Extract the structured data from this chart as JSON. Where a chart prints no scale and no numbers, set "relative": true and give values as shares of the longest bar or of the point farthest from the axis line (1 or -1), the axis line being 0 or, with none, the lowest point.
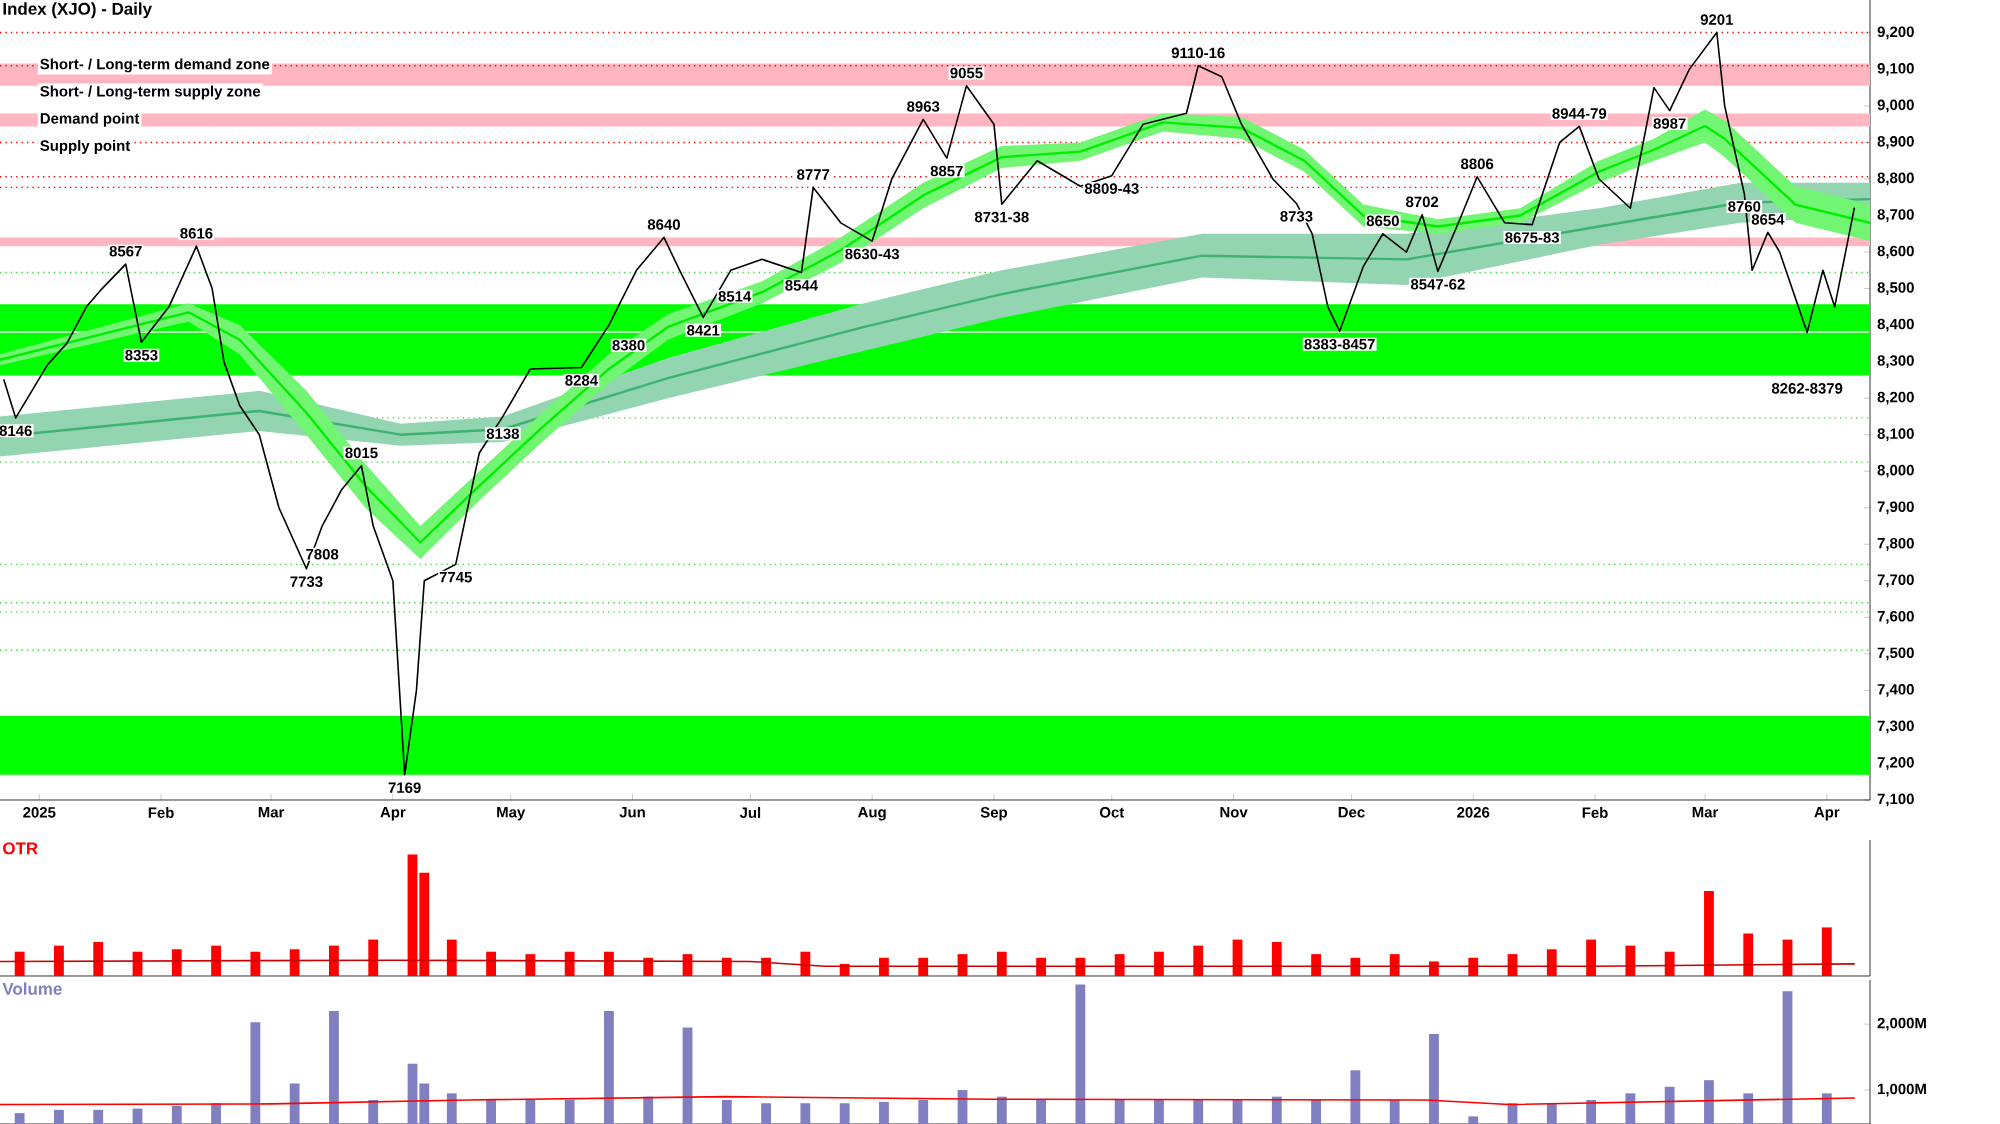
{
  "chart_data": [
    {
      "type": "line",
      "title": "Index (XJO) - Daily",
      "annotations": [
        "Short- / Long-term demand zone",
        "Short- / Long-term supply zone",
        "Demand point",
        "Supply point",
        {
          "text": "8146",
          "x": "2024-12-26",
          "y": 8146
        },
        {
          "text": "8567",
          "x": "2025-01-23",
          "y": 8567
        },
        {
          "text": "8353",
          "x": "2025-01-27",
          "y": 8353
        },
        {
          "text": "8616",
          "x": "2025-02-10",
          "y": 8616
        },
        {
          "text": "7733",
          "x": "2025-03-10",
          "y": 7733
        },
        {
          "text": "7808",
          "x": "2025-03-14",
          "y": 7808
        },
        {
          "text": "8015",
          "x": "2025-03-24",
          "y": 8015
        },
        {
          "text": "7169",
          "x": "2025-04-04",
          "y": 7169
        },
        {
          "text": "7745",
          "x": "2025-04-17",
          "y": 7745
        },
        {
          "text": "8138",
          "x": "2025-04-29",
          "y": 8138
        },
        {
          "text": "8284",
          "x": "2025-05-19",
          "y": 8284
        },
        {
          "text": "8380",
          "x": "2025-05-31",
          "y": 8380
        },
        {
          "text": "8640",
          "x": "2025-06-09",
          "y": 8640
        },
        {
          "text": "8421",
          "x": "2025-06-19",
          "y": 8421
        },
        {
          "text": "8514",
          "x": "2025-06-27",
          "y": 8514
        },
        {
          "text": "8544",
          "x": "2025-07-14",
          "y": 8544
        },
        {
          "text": "8777",
          "x": "2025-07-17",
          "y": 8777
        },
        {
          "text": "8630-43",
          "x": "2025-08-01",
          "y": 8630
        },
        {
          "text": "8963",
          "x": "2025-08-14",
          "y": 8963
        },
        {
          "text": "8857",
          "x": "2025-08-20",
          "y": 8857
        },
        {
          "text": "9055",
          "x": "2025-08-25",
          "y": 9055
        },
        {
          "text": "8731-38",
          "x": "2025-09-03",
          "y": 8731
        },
        {
          "text": "8809-43",
          "x": "2025-10-01",
          "y": 8809
        },
        {
          "text": "9110-16",
          "x": "2025-10-23",
          "y": 9110
        },
        {
          "text": "8733",
          "x": "2025-11-17",
          "y": 8733
        },
        {
          "text": "8383-8457",
          "x": "2025-11-28",
          "y": 8383
        },
        {
          "text": "8650",
          "x": "2025-12-09",
          "y": 8650
        },
        {
          "text": "8702",
          "x": "2025-12-19",
          "y": 8702
        },
        {
          "text": "8547-62",
          "x": "2025-12-23",
          "y": 8547
        },
        {
          "text": "8806",
          "x": "2026-01-02",
          "y": 8806
        },
        {
          "text": "8675-83",
          "x": "2026-01-16",
          "y": 8675
        },
        {
          "text": "8944-79",
          "x": "2026-01-28",
          "y": 8944
        },
        {
          "text": "8987",
          "x": "2026-02-20",
          "y": 8987
        },
        {
          "text": "9201",
          "x": "2026-03-04",
          "y": 9201
        },
        {
          "text": "8760",
          "x": "2026-03-11",
          "y": 8760
        },
        {
          "text": "8654",
          "x": "2026-03-17",
          "y": 8654
        },
        {
          "text": "8262-8379",
          "x": "2026-03-27",
          "y": 8262
        }
      ],
      "xlim": [
        "2024-12-22",
        "2026-04-12"
      ],
      "xticks": [
        {
          "value": "2025-01-01",
          "label": "2025"
        },
        {
          "value": "2025-02-01",
          "label": "Feb"
        },
        {
          "value": "2025-03-01",
          "label": "Mar"
        },
        {
          "value": "2025-04-01",
          "label": "Apr"
        },
        {
          "value": "2025-05-01",
          "label": "May"
        },
        {
          "value": "2025-06-01",
          "label": "Jun"
        },
        {
          "value": "2025-07-01",
          "label": "Jul"
        },
        {
          "value": "2025-08-01",
          "label": "Aug"
        },
        {
          "value": "2025-09-01",
          "label": "Sep"
        },
        {
          "value": "2025-10-01",
          "label": "Oct"
        },
        {
          "value": "2025-11-01",
          "label": "Nov"
        },
        {
          "value": "2025-12-01",
          "label": "Dec"
        },
        {
          "value": "2026-01-01",
          "label": "2026"
        },
        {
          "value": "2026-02-01",
          "label": "Feb"
        },
        {
          "value": "2026-03-01",
          "label": "Mar"
        },
        {
          "value": "2026-04-01",
          "label": "Apr"
        }
      ],
      "ylim": [
        7100,
        9290
      ],
      "yticks": [
        {
          "value": 7100,
          "label": "7,100"
        },
        {
          "value": 7200,
          "label": "7,200"
        },
        {
          "value": 7300,
          "label": "7,300"
        },
        {
          "value": 7400,
          "label": "7,400"
        },
        {
          "value": 7500,
          "label": "7,500"
        },
        {
          "value": 7600,
          "label": "7,600"
        },
        {
          "value": 7700,
          "label": "7,700"
        },
        {
          "value": 7800,
          "label": "7,800"
        },
        {
          "value": 7900,
          "label": "7,900"
        },
        {
          "value": 8000,
          "label": "8,000"
        },
        {
          "value": 8100,
          "label": "8,100"
        },
        {
          "value": 8200,
          "label": "8,200"
        },
        {
          "value": 8300,
          "label": "8,300"
        },
        {
          "value": 8400,
          "label": "8,400"
        },
        {
          "value": 8500,
          "label": "8,500"
        },
        {
          "value": 8600,
          "label": "8,600"
        },
        {
          "value": 8700,
          "label": "8,700"
        },
        {
          "value": 8800,
          "label": "8,800"
        },
        {
          "value": 8900,
          "label": "8,900"
        },
        {
          "value": 9000,
          "label": "9,000"
        },
        {
          "value": 9100,
          "label": "9,100"
        },
        {
          "value": 9200,
          "label": "9,200"
        }
      ],
      "bands": [
        {
          "axis": "y",
          "from": 7169,
          "to": 7330,
          "color": "#00ff00"
        },
        {
          "axis": "y",
          "from": 8383,
          "to": 8457,
          "color": "#00ff00"
        },
        {
          "axis": "y",
          "from": 8262,
          "to": 8379,
          "color": "#00ff00"
        },
        {
          "axis": "y",
          "from": 9055,
          "to": 9116,
          "color": "#ffb6c1"
        },
        {
          "axis": "y",
          "from": 8616,
          "to": 8640,
          "color": "#ffb6c1"
        },
        {
          "axis": "y",
          "from": 8944,
          "to": 8979,
          "color": "#ffb6c1"
        }
      ],
      "ref_lines": [
        {
          "axis": "y",
          "value": 8544,
          "color": "#33dd33",
          "line_style": "dotted"
        },
        {
          "axis": "y",
          "value": 8440,
          "color": "#33dd33",
          "line_style": "dotted"
        },
        {
          "axis": "y",
          "value": 8300,
          "color": "#33dd33",
          "line_style": "dotted"
        },
        {
          "axis": "y",
          "value": 8146,
          "color": "#33dd33",
          "line_style": "dotted"
        },
        {
          "axis": "y",
          "value": 8025,
          "color": "#33dd33",
          "line_style": "dotted"
        },
        {
          "axis": "y",
          "value": 7745,
          "color": "#33dd33",
          "line_style": "dotted"
        },
        {
          "axis": "y",
          "value": 7640,
          "color": "#33dd33",
          "line_style": "dotted"
        },
        {
          "axis": "y",
          "value": 7615,
          "color": "#33dd33",
          "line_style": "dotted"
        },
        {
          "axis": "y",
          "value": 7510,
          "color": "#33dd33",
          "line_style": "dotted"
        },
        {
          "axis": "y",
          "value": 9201,
          "color": "#ff0000",
          "line_style": "dotted"
        },
        {
          "axis": "y",
          "value": 9110,
          "color": "#ff0000",
          "line_style": "dotted"
        },
        {
          "axis": "y",
          "value": 8900,
          "color": "#ff0000",
          "line_style": "dotted"
        },
        {
          "axis": "y",
          "value": 8806,
          "color": "#ff0000",
          "line_style": "dotted"
        },
        {
          "axis": "y",
          "value": 8777,
          "color": "#ff0000",
          "line_style": "dotted"
        }
      ],
      "series": [
        {
          "color": "#000000",
          "x": [
            "2024-12-23",
            "2024-12-26",
            "2025-01-03",
            "2025-01-08",
            "2025-01-13",
            "2025-01-17",
            "2025-01-23",
            "2025-01-27",
            "2025-02-03",
            "2025-02-10",
            "2025-02-14",
            "2025-02-17",
            "2025-02-21",
            "2025-02-26",
            "2025-03-03",
            "2025-03-10",
            "2025-03-14",
            "2025-03-19",
            "2025-03-24",
            "2025-03-27",
            "2025-04-01",
            "2025-04-04",
            "2025-04-07",
            "2025-04-09",
            "2025-04-17",
            "2025-04-23",
            "2025-04-29",
            "2025-05-06",
            "2025-05-19",
            "2025-05-26",
            "2025-06-02",
            "2025-06-09",
            "2025-06-13",
            "2025-06-19",
            "2025-06-26",
            "2025-07-04",
            "2025-07-14",
            "2025-07-17",
            "2025-07-24",
            "2025-08-01",
            "2025-08-06",
            "2025-08-14",
            "2025-08-20",
            "2025-08-25",
            "2025-09-01",
            "2025-09-03",
            "2025-09-12",
            "2025-09-23",
            "2025-10-01",
            "2025-10-09",
            "2025-10-20",
            "2025-10-23",
            "2025-10-29",
            "2025-11-03",
            "2025-11-11",
            "2025-11-17",
            "2025-11-21",
            "2025-11-25",
            "2025-11-28",
            "2025-12-04",
            "2025-12-09",
            "2025-12-15",
            "2025-12-19",
            "2025-12-23",
            "2025-12-29",
            "2026-01-02",
            "2026-01-09",
            "2026-01-16",
            "2026-01-23",
            "2026-01-28",
            "2026-02-02",
            "2026-02-10",
            "2026-02-16",
            "2026-02-20",
            "2026-02-25",
            "2026-03-04",
            "2026-03-06",
            "2026-03-11",
            "2026-03-13",
            "2026-03-17",
            "2026-03-20",
            "2026-03-27",
            "2026-03-31",
            "2026-04-03",
            "2026-04-08"
          ],
          "values": [
            8250,
            8146,
            8290,
            8350,
            8450,
            8500,
            8567,
            8353,
            8450,
            8616,
            8500,
            8300,
            8180,
            8100,
            7900,
            7733,
            7850,
            7950,
            8015,
            7850,
            7700,
            7169,
            7400,
            7700,
            7745,
            8050,
            8150,
            8280,
            8284,
            8400,
            8550,
            8640,
            8550,
            8421,
            8550,
            8580,
            8544,
            8777,
            8680,
            8630,
            8800,
            8963,
            8857,
            9055,
            8950,
            8731,
            8850,
            8780,
            8809,
            8950,
            8980,
            9110,
            9080,
            8950,
            8800,
            8733,
            8650,
            8450,
            8383,
            8560,
            8650,
            8600,
            8702,
            8547,
            8700,
            8806,
            8680,
            8675,
            8900,
            8944,
            8800,
            8720,
            9050,
            8987,
            9100,
            9201,
            9000,
            8760,
            8550,
            8654,
            8600,
            8380,
            8550,
            8450,
            8720
          ]
        },
        {
          "color": "#3cb371",
          "x": [
            "2024-12-22",
            "2025-02-26",
            "2025-04-03",
            "2025-04-29",
            "2025-06-10",
            "2025-07-30",
            "2025-09-03",
            "2025-10-24",
            "2025-12-15",
            "2026-02-02",
            "2026-03-10",
            "2026-04-12"
          ],
          "values": [
            8095,
            8165,
            8100,
            8115,
            8255,
            8395,
            8485,
            8590,
            8580,
            8670,
            8735,
            8745
          ],
          "lower": [
            8040,
            8110,
            8070,
            8080,
            8200,
            8330,
            8420,
            8530,
            8510,
            8620,
            8680,
            8700
          ],
          "upper": [
            8150,
            8220,
            8130,
            8150,
            8310,
            8460,
            8550,
            8650,
            8650,
            8720,
            8790,
            8790
          ]
        },
        {
          "color": "#00ee00",
          "x": [
            "2024-12-22",
            "2025-02-08",
            "2025-02-21",
            "2025-03-10",
            "2025-03-25",
            "2025-04-08",
            "2025-04-23",
            "2025-05-09",
            "2025-05-26",
            "2025-06-10",
            "2025-07-04",
            "2025-07-24",
            "2025-08-14",
            "2025-09-03",
            "2025-09-23",
            "2025-10-14",
            "2025-11-03",
            "2025-11-19",
            "2025-12-04",
            "2025-12-23",
            "2026-01-13",
            "2026-02-02",
            "2026-02-16",
            "2026-03-01",
            "2026-03-06",
            "2026-03-24",
            "2026-04-12"
          ],
          "values": [
            8305,
            8435,
            8360,
            8160,
            7960,
            7805,
            7960,
            8120,
            8280,
            8395,
            8490,
            8605,
            8755,
            8860,
            8875,
            8955,
            8940,
            8850,
            8700,
            8670,
            8700,
            8820,
            8880,
            8945,
            8910,
            8730,
            8680
          ],
          "lower": [
            8290,
            8410,
            8320,
            8100,
            7900,
            7760,
            7920,
            8080,
            8240,
            8360,
            8460,
            8570,
            8720,
            8830,
            8850,
            8930,
            8910,
            8820,
            8670,
            8650,
            8680,
            8790,
            8850,
            8900,
            8860,
            8680,
            8630
          ],
          "upper": [
            8320,
            8460,
            8400,
            8220,
            8020,
            7850,
            8000,
            8160,
            8320,
            8430,
            8520,
            8640,
            8790,
            8890,
            8900,
            8980,
            8970,
            8880,
            8730,
            8690,
            8720,
            8850,
            8910,
            8990,
            8960,
            8780,
            8730
          ]
        }
      ]
    },
    {
      "type": "bar",
      "title": "OTR",
      "relative": true,
      "tick_labels": false,
      "xlim": [
        "2024-12-22",
        "2026-04-12"
      ],
      "series": [
        {
          "color": "#ff0000",
          "x": [
            "2024-12-27",
            "2025-01-06",
            "2025-01-16",
            "2025-01-26",
            "2025-02-05",
            "2025-02-15",
            "2025-02-25",
            "2025-03-07",
            "2025-03-17",
            "2025-03-27",
            "2025-04-06",
            "2025-04-09",
            "2025-04-16",
            "2025-04-26",
            "2025-05-06",
            "2025-05-16",
            "2025-05-26",
            "2025-06-05",
            "2025-06-15",
            "2025-06-25",
            "2025-07-05",
            "2025-07-15",
            "2025-07-25",
            "2025-08-04",
            "2025-08-14",
            "2025-08-24",
            "2025-09-03",
            "2025-09-13",
            "2025-09-23",
            "2025-10-03",
            "2025-10-13",
            "2025-10-23",
            "2025-11-02",
            "2025-11-12",
            "2025-11-22",
            "2025-12-02",
            "2025-12-12",
            "2025-12-22",
            "2026-01-01",
            "2026-01-11",
            "2026-01-21",
            "2026-01-31",
            "2026-02-10",
            "2026-02-20",
            "2026-03-02",
            "2026-03-12",
            "2026-03-22",
            "2026-04-01"
          ],
          "values": [
            0.2,
            0.25,
            0.28,
            0.2,
            0.22,
            0.25,
            0.2,
            0.22,
            0.25,
            0.3,
            1.0,
            0.85,
            0.3,
            0.2,
            0.18,
            0.2,
            0.2,
            0.15,
            0.18,
            0.15,
            0.15,
            0.2,
            0.1,
            0.15,
            0.15,
            0.18,
            0.2,
            0.15,
            0.15,
            0.18,
            0.2,
            0.25,
            0.3,
            0.28,
            0.18,
            0.15,
            0.18,
            0.12,
            0.15,
            0.18,
            0.22,
            0.3,
            0.25,
            0.2,
            0.7,
            0.35,
            0.3,
            0.4
          ]
        },
        {
          "type": "line",
          "color": "#cc0000",
          "x": [
            "2024-12-22",
            "2025-04-01",
            "2025-07-01",
            "2025-07-20",
            "2026-02-01",
            "2026-04-08"
          ],
          "values": [
            0.12,
            0.13,
            0.12,
            0.08,
            0.08,
            0.1
          ]
        }
      ]
    },
    {
      "type": "bar",
      "title": "Volume",
      "tick_labels": "y",
      "xlim": [
        "2024-12-22",
        "2026-04-12"
      ],
      "ylim": [
        485,
        2670
      ],
      "yticks": [
        {
          "value": 1000,
          "label": "1,000M"
        },
        {
          "value": 2000,
          "label": "2,000M"
        }
      ],
      "series": [
        {
          "color": "#8080c0",
          "x": [
            "2024-12-27",
            "2025-01-06",
            "2025-01-16",
            "2025-01-26",
            "2025-02-05",
            "2025-02-15",
            "2025-02-25",
            "2025-03-07",
            "2025-03-17",
            "2025-03-27",
            "2025-04-06",
            "2025-04-09",
            "2025-04-16",
            "2025-04-26",
            "2025-05-06",
            "2025-05-16",
            "2025-05-26",
            "2025-06-05",
            "2025-06-15",
            "2025-06-25",
            "2025-07-05",
            "2025-07-15",
            "2025-07-25",
            "2025-08-04",
            "2025-08-14",
            "2025-08-24",
            "2025-09-03",
            "2025-09-13",
            "2025-09-23",
            "2025-10-03",
            "2025-10-13",
            "2025-10-23",
            "2025-11-02",
            "2025-11-12",
            "2025-11-22",
            "2025-12-02",
            "2025-12-12",
            "2025-12-22",
            "2026-01-01",
            "2026-01-11",
            "2026-01-21",
            "2026-01-31",
            "2026-02-10",
            "2026-02-20",
            "2026-03-02",
            "2026-03-12",
            "2026-03-22",
            "2026-04-01"
          ],
          "values": [
            650,
            700,
            700,
            720,
            760,
            800,
            2030,
            1100,
            2200,
            850,
            1400,
            1100,
            950,
            850,
            850,
            850,
            2200,
            900,
            1950,
            850,
            800,
            800,
            800,
            820,
            850,
            1000,
            900,
            850,
            2600,
            850,
            850,
            850,
            850,
            900,
            850,
            1300,
            850,
            1850,
            600,
            800,
            800,
            850,
            950,
            1050,
            1150,
            950,
            2500,
            950
          ]
        },
        {
          "type": "line",
          "color": "#ff0000",
          "x": [
            "2024-12-22",
            "2025-03-01",
            "2025-04-20",
            "2025-06-25",
            "2025-09-01",
            "2025-12-20",
            "2026-01-10",
            "2026-04-08"
          ],
          "values": [
            780,
            790,
            850,
            900,
            860,
            850,
            780,
            880
          ]
        }
      ]
    }
  ]
}
